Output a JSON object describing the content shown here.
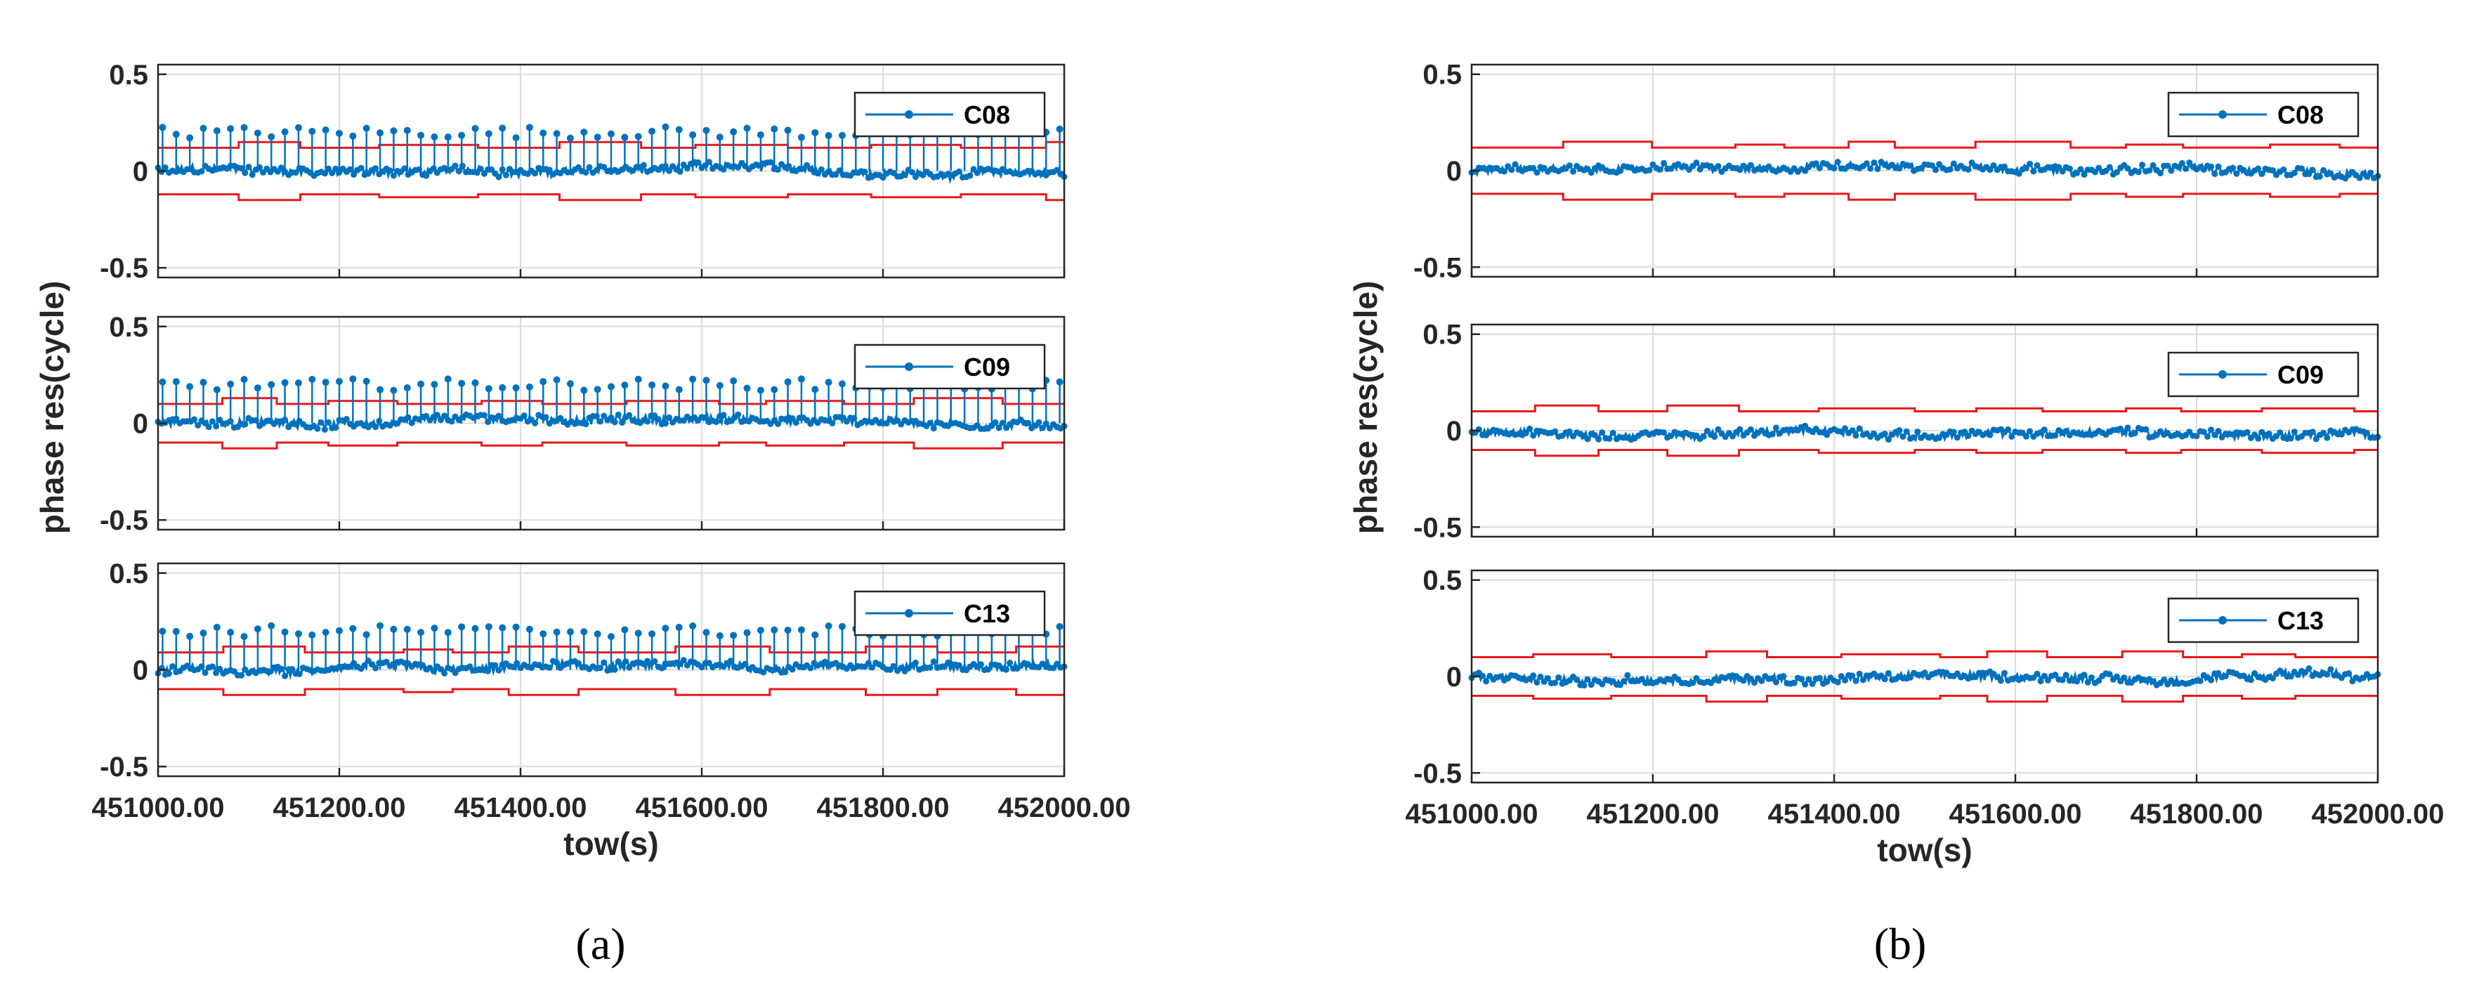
{
  "colors": {
    "series": "#0072BD",
    "bound": "#E8191B",
    "grid": "#DCDCDC",
    "axis": "#262626"
  },
  "figures": [
    {
      "caption": "(a)",
      "xlabel": "tow(s)",
      "ylabel": "phase res(cycle)",
      "xticks": [
        "451000.00",
        "451200.00",
        "451400.00",
        "451600.00",
        "451800.00",
        "452000.00"
      ],
      "spikes": true
    },
    {
      "caption": "(b)",
      "xlabel": "tow(s)",
      "ylabel": "phase res(cycle)",
      "xticks": [
        "451000.00",
        "451200.00",
        "451400.00",
        "451600.00",
        "451800.00",
        "452000.00"
      ],
      "spikes": false
    }
  ],
  "chart_data": [
    {
      "type": "line",
      "title": "(a)",
      "xlabel": "tow(s)",
      "ylabel": "phase res(cycle)",
      "xlim": [
        451000,
        452000
      ],
      "panels": [
        {
          "legend": "C08",
          "ylim": [
            -0.55,
            0.55
          ],
          "yticks": [
            "0.5",
            "0",
            "-0.5"
          ],
          "residual_mean": 0.0,
          "spike_peak": 0.2,
          "spike_interval_s": 15,
          "upper_bound": 0.12,
          "lower_bound": -0.12
        },
        {
          "legend": "C09",
          "ylim": [
            -0.55,
            0.55
          ],
          "yticks": [
            "0.5",
            "0",
            "-0.5"
          ],
          "residual_mean": 0.0,
          "spike_peak": 0.2,
          "spike_interval_s": 15,
          "upper_bound": 0.1,
          "lower_bound": -0.1
        },
        {
          "legend": "C13",
          "ylim": [
            -0.55,
            0.55
          ],
          "yticks": [
            "0.5",
            "0",
            "-0.5"
          ],
          "residual_mean": 0.0,
          "spike_peak": 0.2,
          "spike_interval_s": 15,
          "upper_bound": 0.09,
          "lower_bound": -0.1
        }
      ]
    },
    {
      "type": "line",
      "title": "(b)",
      "xlabel": "tow(s)",
      "ylabel": "phase res(cycle)",
      "xlim": [
        451000,
        452000
      ],
      "panels": [
        {
          "legend": "C08",
          "ylim": [
            -0.55,
            0.55
          ],
          "yticks": [
            "0.5",
            "0",
            "-0.5"
          ],
          "residual_mean": 0.0,
          "upper_bound": 0.12,
          "lower_bound": -0.12
        },
        {
          "legend": "C09",
          "ylim": [
            -0.55,
            0.55
          ],
          "yticks": [
            "0.5",
            "0",
            "-0.5"
          ],
          "residual_mean": 0.0,
          "upper_bound": 0.1,
          "lower_bound": -0.1
        },
        {
          "legend": "C13",
          "ylim": [
            -0.55,
            0.55
          ],
          "yticks": [
            "0.5",
            "0",
            "-0.5"
          ],
          "residual_mean": 0.0,
          "upper_bound": 0.1,
          "lower_bound": -0.1
        }
      ]
    }
  ]
}
